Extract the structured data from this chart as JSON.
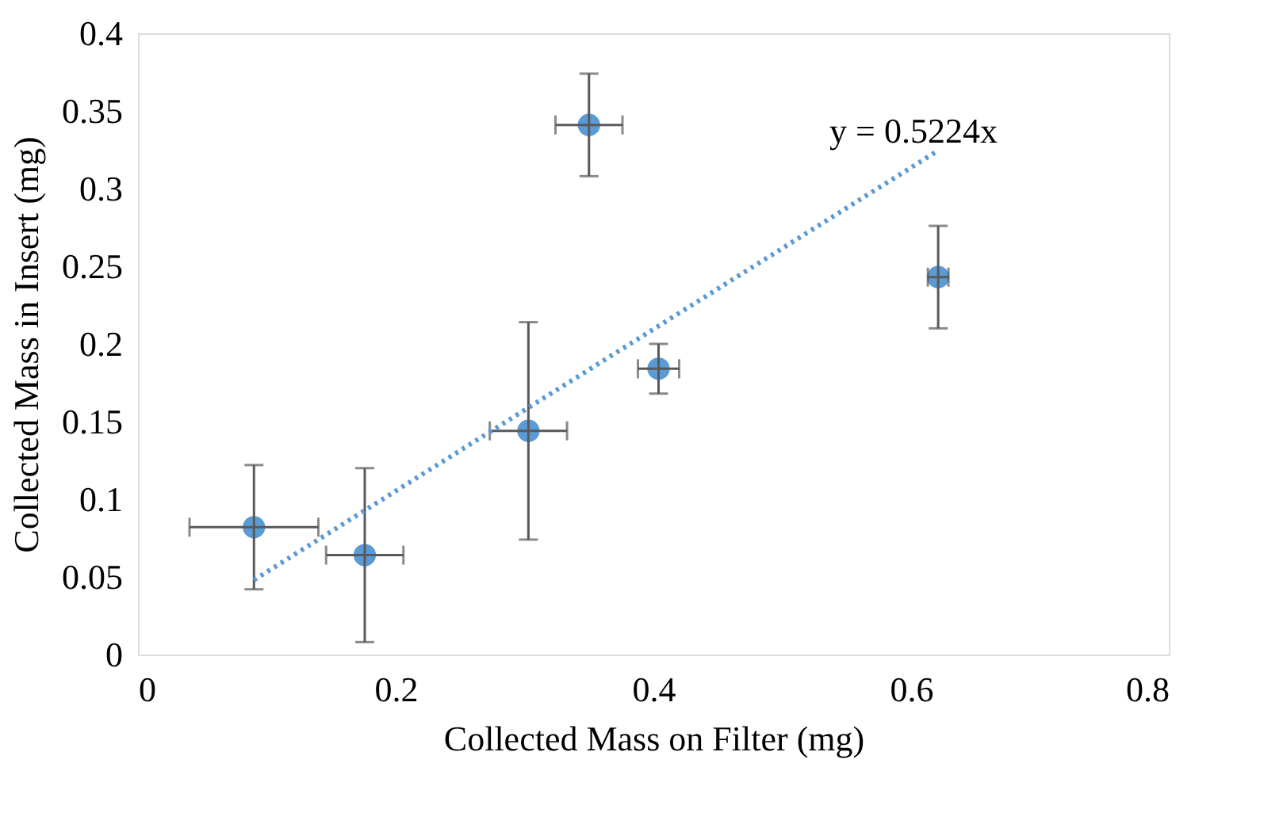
{
  "chart_data": {
    "type": "scatter",
    "xlabel": "Collected Mass on Filter (mg)",
    "ylabel": "Collected Mass in Insert (mg)",
    "xlim": [
      0,
      0.8
    ],
    "xticks": [
      0,
      0.2,
      0.4,
      0.6,
      0.8
    ],
    "ylim": [
      0,
      0.4
    ],
    "yticks": [
      0,
      0.05,
      0.1,
      0.15,
      0.2,
      0.25,
      0.3,
      0.35,
      0.4
    ],
    "grid": false,
    "series": [
      {
        "marker": "circle",
        "color": "#5b9bd5",
        "x": [
          0.09,
          0.176,
          0.303,
          0.35,
          0.404,
          0.621
        ],
        "values": [
          0.082,
          0.064,
          0.144,
          0.341,
          0.184,
          0.243
        ],
        "xerrors": [
          0.05,
          0.03,
          0.03,
          0.026,
          0.016,
          0.008
        ],
        "errors": [
          0.04,
          0.056,
          0.07,
          0.033,
          0.016,
          0.033
        ]
      },
      {
        "type": "line",
        "marker": "none",
        "color": "#5b9bd5",
        "line_style": "dotted",
        "x": [
          0.09,
          0.62
        ],
        "values": [
          0.048,
          0.324
        ]
      }
    ],
    "annotations": [
      "y = 0.5224x"
    ]
  }
}
